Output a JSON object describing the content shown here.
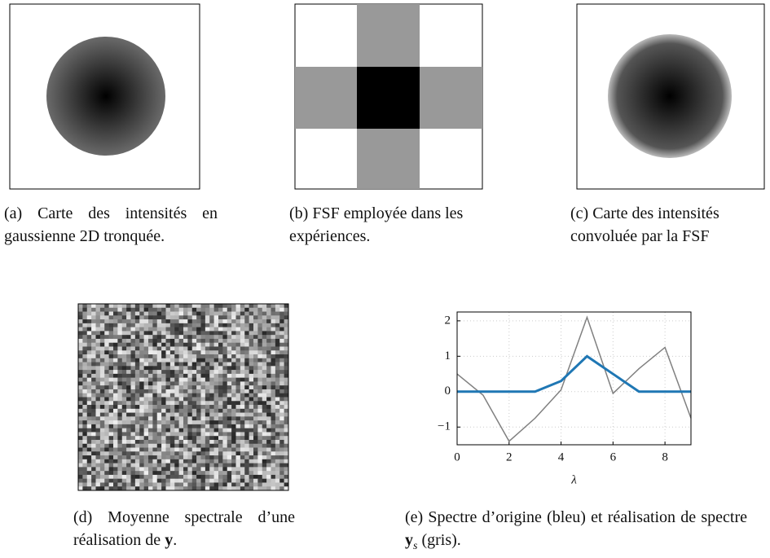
{
  "captions": [
    {
      "label": "(a)",
      "text": "Carte des intensités en gaussienne 2D tronquée."
    },
    {
      "label": "(b)",
      "text": "FSF employée dans les expériences."
    },
    {
      "label": "(c)",
      "text": "Carte des intensités convoluée par la FSF"
    },
    {
      "label": "(d)",
      "text": "Moyenne spectrale d’une réalisation de",
      "math": "y",
      "end": "."
    },
    {
      "label": "(e)",
      "text": "Spectre d’origine (bleu) et réalisation de spectre",
      "math": "y",
      "sub": "s",
      "end": "(gris)."
    }
  ],
  "chart_data": {
    "type": "line",
    "xlabel": "λ",
    "x": [
      0,
      1,
      2,
      3,
      4,
      5,
      6,
      7,
      8,
      9
    ],
    "series": [
      {
        "color": "#808080",
        "values": [
          0.5,
          -0.1,
          -1.4,
          -0.75,
          0.05,
          2.1,
          -0.05,
          0.65,
          1.25,
          -0.75
        ]
      },
      {
        "color": "#1f77b4",
        "values": [
          0,
          0,
          0,
          0,
          0.3,
          1,
          0.5,
          0,
          0,
          0
        ]
      }
    ],
    "xlim": [
      0,
      9
    ],
    "xticks": [
      0,
      2,
      4,
      6,
      8
    ],
    "ylim": [
      -1.5,
      2.25
    ],
    "yticks": [
      {
        "value": -1,
        "label": "−1"
      },
      0,
      1,
      2
    ],
    "grid": true
  }
}
